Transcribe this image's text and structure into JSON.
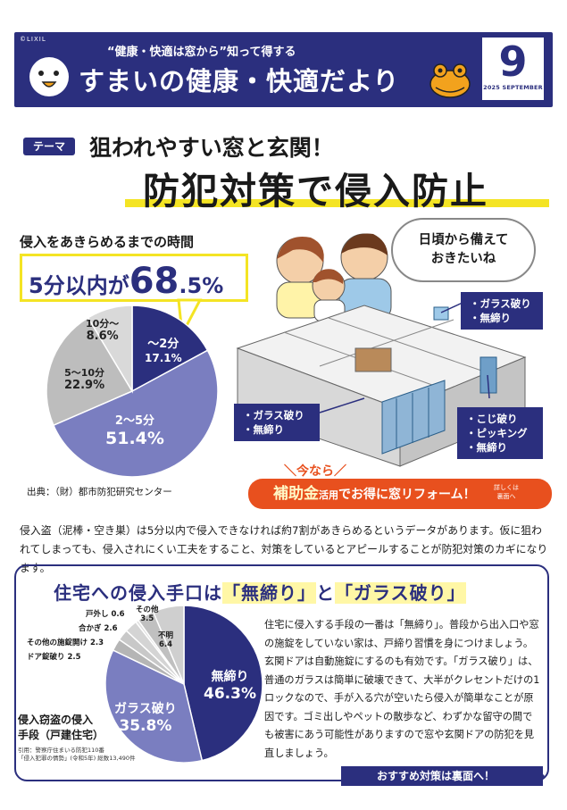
{
  "header": {
    "brand": "©LIXIL",
    "subtitle": "“健康・快適は窓から”知って得する",
    "title": "すまいの健康・快適だより",
    "issue_number": "9",
    "issue_date": "2025 SEPTEMBER",
    "colors": {
      "navy": "#2b2f7e",
      "yellow": "#f4e424",
      "orange": "#e8501e"
    }
  },
  "theme": {
    "tag": "テーマ",
    "line1": "狙われやすい窓と玄関！",
    "line2": "防犯対策で侵入防止"
  },
  "time_section": {
    "heading": "侵入をあきらめるまでの時間",
    "highlight_prefix": "5分以内が",
    "highlight_value": "68",
    "highlight_suffix": ".5%",
    "source": "出典：（財）都市防犯研究センター"
  },
  "illustration": {
    "bubble_line1": "日頃から備えて",
    "bubble_line2": "おきたいね",
    "callout_right_top": [
      "・ガラス破り",
      "・無締り"
    ],
    "callout_left": [
      "・ガラス破り",
      "・無締り"
    ],
    "callout_right_bottom": [
      "・こじ破り",
      "・ピッキング",
      "・無締り"
    ]
  },
  "subsidy": {
    "small": "今なら",
    "large": "補助金",
    "mid": "活用",
    "rest": "でお得に窓リフォーム！",
    "details_1": "詳しくは",
    "details_2": "裏面へ"
  },
  "intro": "侵入盗（泥棒・空き巣）は5分以内で侵入できなければ約7割があきらめるというデータがあります。仮に狙われてしまっても、侵入されにくい工夫をすること、対策をしているとアピールすることが防犯対策のカギになります。",
  "section2": {
    "title_pre": "住宅への侵入手口は",
    "title_q1": "「無締り」",
    "title_mid": "と",
    "title_q2": "「ガラス破り」",
    "pie_title_1": "侵入窃盗の侵入",
    "pie_title_2": "手段（戸建住宅）",
    "cite_1": "引用：警察庁住まいる防犯110番",
    "cite_2": "「侵入犯罪の情勢」(令和5年) 総数13,490件",
    "body": "住宅に侵入する手段の一番は「無締り」。普段から出入口や窓の施錠をしていない家は、戸締り習慣を身につけましょう。玄関ドアは自動施錠にするのも有効です。「ガラス破り」は、普通のガラスは簡単に破壊できて、大半がクレセントだけの1ロックなので、手が入る穴が空いたら侵入が簡単なことが原因です。ゴミ出しやペットの散歩など、わずかな留守の間でも被害にあう可能性がありますので窓や玄関ドアの防犯を見直しましょう。",
    "recommend": "おすすめ対策は裏面へ！"
  },
  "chart_data": [
    {
      "type": "pie",
      "title": "侵入をあきらめるまでの時間",
      "categories": [
        "〜2分",
        "2〜5分",
        "5〜10分",
        "10分〜"
      ],
      "values": [
        17.1,
        51.4,
        22.9,
        8.6
      ],
      "labels": [
        {
          "name": "〜2分",
          "value": "17.1%"
        },
        {
          "name": "2〜5分",
          "value": "51.4%"
        },
        {
          "name": "5〜10分",
          "value": "22.9%"
        },
        {
          "name": "10分〜",
          "value": "8.6%"
        }
      ],
      "colors": [
        "#2b2f7e",
        "#7a7ec0",
        "#bdbdbd",
        "#d9d9d9"
      ]
    },
    {
      "type": "pie",
      "title": "侵入窃盗の侵入手段（戸建住宅）",
      "categories": [
        "無締り",
        "ガラス破り",
        "ドア錠破り",
        "その他の施錠開け",
        "合かぎ",
        "戸外し",
        "その他",
        "不明"
      ],
      "values": [
        46.3,
        35.8,
        2.5,
        2.3,
        2.6,
        0.6,
        3.5,
        6.4
      ],
      "labels": [
        {
          "name": "無締り",
          "value": "46.3%"
        },
        {
          "name": "ガラス破り",
          "value": "35.8%"
        },
        {
          "name": "ドア錠破り",
          "value": "2.5"
        },
        {
          "name": "その他の施錠開け",
          "value": "2.3"
        },
        {
          "name": "合かぎ",
          "value": "2.6"
        },
        {
          "name": "戸外し",
          "value": "0.6"
        },
        {
          "name": "その他",
          "value": "3.5"
        },
        {
          "name": "不明",
          "value": "6.4"
        }
      ],
      "colors": [
        "#2b2f7e",
        "#7a7ec0",
        "#b5b5b5",
        "#c8c8c8",
        "#d4d4d4",
        "#e0e0e0",
        "#c0c0c0",
        "#cfcfcf"
      ]
    }
  ]
}
